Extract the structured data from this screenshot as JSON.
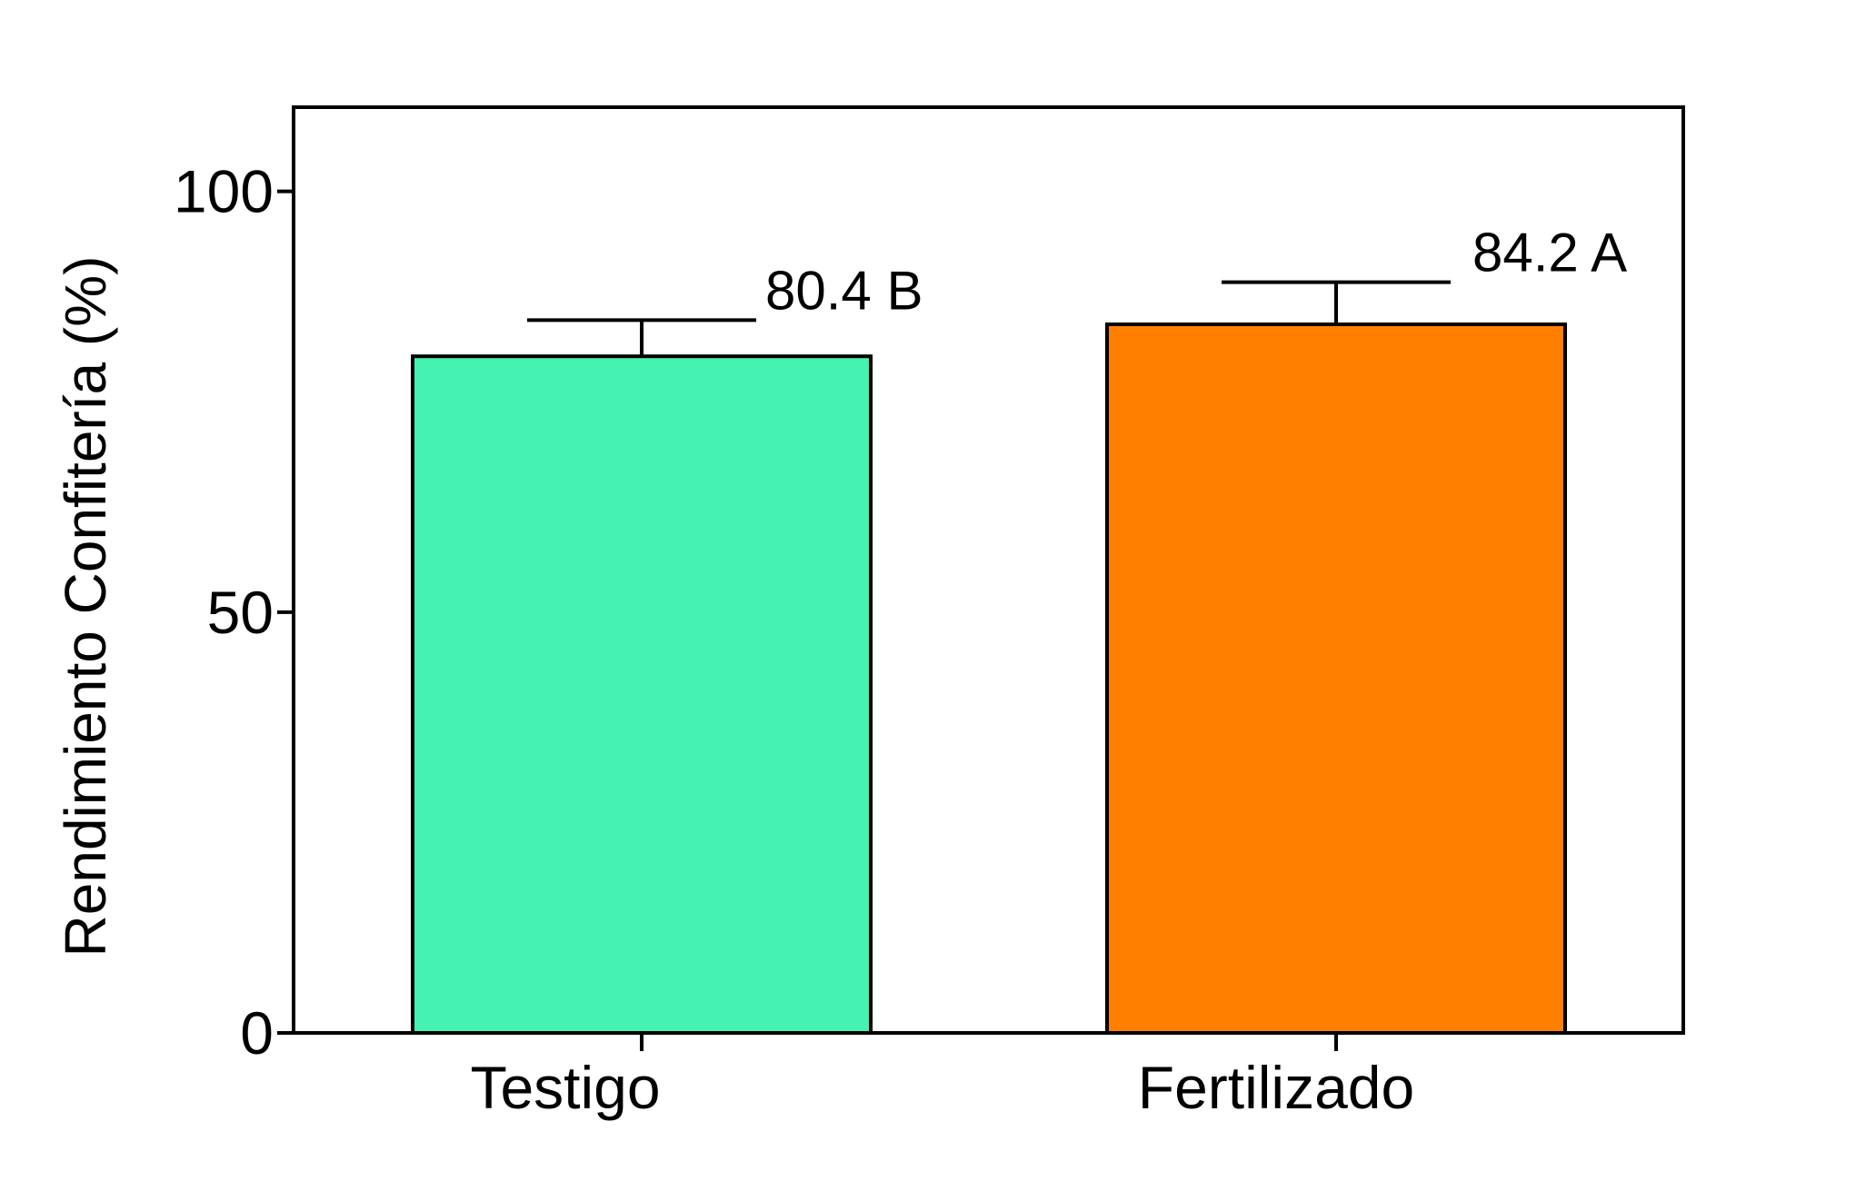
{
  "chart_data": {
    "type": "bar",
    "title": "",
    "xlabel": "",
    "ylabel": "Rendimiento Confitería (%)",
    "categories": [
      "Testigo",
      "Fertilizado"
    ],
    "values": [
      80.4,
      84.2
    ],
    "error_upper": [
      84.7,
      89.2
    ],
    "annotations": [
      "80.4 B",
      "84.2 A"
    ],
    "ylim": [
      0,
      110
    ],
    "yticks": [
      0,
      50,
      100
    ],
    "ytick_labels": [
      "0",
      "50",
      "100"
    ],
    "colors": [
      "#45f2b1",
      "#ff8000"
    ],
    "edge_color": "#000000",
    "grid": false,
    "legend": "none"
  }
}
